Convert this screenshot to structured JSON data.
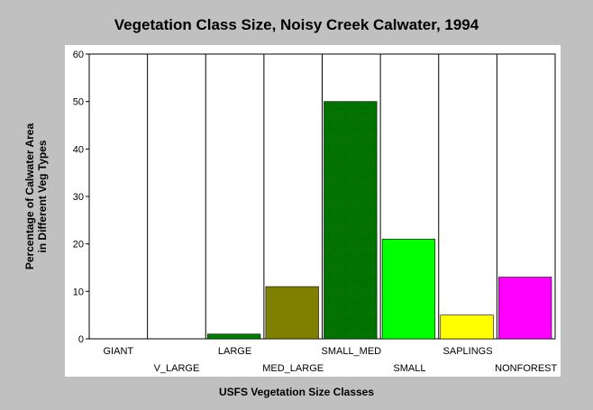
{
  "chart_data": {
    "type": "bar",
    "title": "Vegetation Class Size, Noisy Creek Calwater, 1994",
    "xlabel": "USFS Vegetation Size Classes",
    "ylabel_lines": [
      "Percentage of Calwater Area",
      "in Different Veg Types"
    ],
    "categories": [
      "GIANT",
      "V_LARGE",
      "LARGE",
      "MED_LARGE",
      "SMALL_MED",
      "SMALL",
      "SAPLINGS",
      "NONFOREST"
    ],
    "values": [
      0,
      0,
      1,
      11,
      50,
      21,
      5,
      13
    ],
    "colors": [
      "#008000",
      "#008000",
      "#008000",
      "#808000",
      "#008000",
      "#00ff00",
      "#ffff00",
      "#ff00ff"
    ],
    "hatched": [
      false,
      false,
      false,
      false,
      true,
      false,
      false,
      false
    ],
    "ylim": [
      0,
      60
    ],
    "yticks": [
      0,
      10,
      20,
      30,
      40,
      50,
      60
    ],
    "grid": "vertical category separators",
    "legend": "none"
  }
}
